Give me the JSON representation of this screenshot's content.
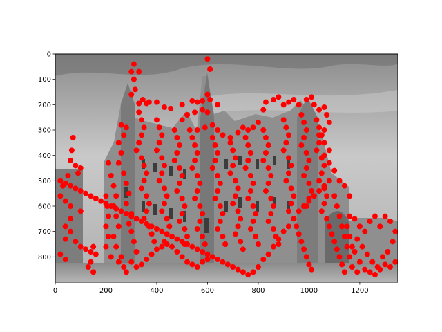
{
  "chart_data": {
    "type": "scatter",
    "title": "",
    "xlabel": "",
    "ylabel": "",
    "background": "grayscale photograph of a castle-like stone building (Episcopal Palace style) with towers, under a cloudy sky",
    "xlim": [
      0,
      1350
    ],
    "ylim": [
      900,
      0
    ],
    "y_inverted": true,
    "grid": false,
    "legend": "none",
    "marker_color": "#ff0000",
    "x_ticks": [
      0,
      200,
      400,
      600,
      800,
      1000,
      1200
    ],
    "y_ticks": [
      0,
      100,
      200,
      300,
      400,
      500,
      600,
      700,
      800
    ],
    "points": [
      [
        600,
        20
      ],
      [
        610,
        60
      ],
      [
        310,
        40
      ],
      [
        300,
        70
      ],
      [
        330,
        70
      ],
      [
        310,
        100
      ],
      [
        315,
        140
      ],
      [
        300,
        160
      ],
      [
        345,
        180
      ],
      [
        330,
        195
      ],
      [
        360,
        195
      ],
      [
        370,
        190
      ],
      [
        400,
        190
      ],
      [
        430,
        210
      ],
      [
        455,
        215
      ],
      [
        500,
        200
      ],
      [
        540,
        185
      ],
      [
        560,
        190
      ],
      [
        580,
        185
      ],
      [
        600,
        160
      ],
      [
        610,
        180
      ],
      [
        640,
        200
      ],
      [
        600,
        230
      ],
      [
        580,
        220
      ],
      [
        550,
        230
      ],
      [
        520,
        240
      ],
      [
        500,
        260
      ],
      [
        530,
        300
      ],
      [
        560,
        300
      ],
      [
        590,
        290
      ],
      [
        620,
        280
      ],
      [
        640,
        300
      ],
      [
        660,
        320
      ],
      [
        690,
        330
      ],
      [
        720,
        310
      ],
      [
        740,
        290
      ],
      [
        760,
        300
      ],
      [
        780,
        290
      ],
      [
        800,
        270
      ],
      [
        820,
        220
      ],
      [
        830,
        190
      ],
      [
        860,
        180
      ],
      [
        880,
        170
      ],
      [
        900,
        200
      ],
      [
        920,
        190
      ],
      [
        940,
        180
      ],
      [
        960,
        200
      ],
      [
        990,
        180
      ],
      [
        1010,
        170
      ],
      [
        1020,
        200
      ],
      [
        1040,
        220
      ],
      [
        1060,
        210
      ],
      [
        1070,
        240
      ],
      [
        1080,
        270
      ],
      [
        1060,
        300
      ],
      [
        1040,
        320
      ],
      [
        1060,
        350
      ],
      [
        1080,
        380
      ],
      [
        1060,
        400
      ],
      [
        1080,
        430
      ],
      [
        1100,
        460
      ],
      [
        1120,
        500
      ],
      [
        1140,
        520
      ],
      [
        1160,
        560
      ],
      [
        1080,
        500
      ],
      [
        1060,
        520
      ],
      [
        1040,
        540
      ],
      [
        1020,
        560
      ],
      [
        1000,
        580
      ],
      [
        980,
        600
      ],
      [
        960,
        620
      ],
      [
        940,
        650
      ],
      [
        920,
        680
      ],
      [
        900,
        700
      ],
      [
        880,
        730
      ],
      [
        860,
        760
      ],
      [
        840,
        790
      ],
      [
        820,
        810
      ],
      [
        800,
        840
      ],
      [
        780,
        860
      ],
      [
        760,
        870
      ],
      [
        740,
        860
      ],
      [
        720,
        850
      ],
      [
        700,
        840
      ],
      [
        680,
        830
      ],
      [
        660,
        820
      ],
      [
        640,
        810
      ],
      [
        620,
        800
      ],
      [
        600,
        790
      ],
      [
        580,
        780
      ],
      [
        560,
        770
      ],
      [
        540,
        760
      ],
      [
        520,
        750
      ],
      [
        500,
        740
      ],
      [
        480,
        730
      ],
      [
        460,
        720
      ],
      [
        440,
        710
      ],
      [
        420,
        700
      ],
      [
        400,
        690
      ],
      [
        380,
        680
      ],
      [
        360,
        670
      ],
      [
        340,
        660
      ],
      [
        320,
        650
      ],
      [
        300,
        640
      ],
      [
        280,
        630
      ],
      [
        260,
        620
      ],
      [
        240,
        610
      ],
      [
        220,
        600
      ],
      [
        200,
        590
      ],
      [
        180,
        580
      ],
      [
        160,
        570
      ],
      [
        140,
        560
      ],
      [
        120,
        550
      ],
      [
        100,
        540
      ],
      [
        80,
        530
      ],
      [
        60,
        520
      ],
      [
        40,
        510
      ],
      [
        20,
        500
      ],
      [
        70,
        330
      ],
      [
        65,
        380
      ],
      [
        60,
        420
      ],
      [
        80,
        440
      ],
      [
        100,
        450
      ],
      [
        90,
        470
      ],
      [
        50,
        480
      ],
      [
        30,
        520
      ],
      [
        20,
        560
      ],
      [
        40,
        580
      ],
      [
        60,
        600
      ],
      [
        100,
        620
      ],
      [
        60,
        650
      ],
      [
        40,
        680
      ],
      [
        60,
        700
      ],
      [
        40,
        730
      ],
      [
        80,
        740
      ],
      [
        100,
        760
      ],
      [
        120,
        770
      ],
      [
        140,
        780
      ],
      [
        150,
        760
      ],
      [
        160,
        790
      ],
      [
        140,
        820
      ],
      [
        130,
        840
      ],
      [
        150,
        860
      ],
      [
        40,
        810
      ],
      [
        20,
        790
      ],
      [
        210,
        430
      ],
      [
        220,
        480
      ],
      [
        230,
        520
      ],
      [
        240,
        560
      ],
      [
        230,
        600
      ],
      [
        240,
        640
      ],
      [
        250,
        680
      ],
      [
        230,
        720
      ],
      [
        240,
        760
      ],
      [
        260,
        800
      ],
      [
        270,
        840
      ],
      [
        280,
        860
      ],
      [
        250,
        820
      ],
      [
        220,
        800
      ],
      [
        200,
        760
      ],
      [
        210,
        720
      ],
      [
        200,
        680
      ],
      [
        210,
        640
      ],
      [
        205,
        600
      ],
      [
        200,
        560
      ],
      [
        260,
        280
      ],
      [
        280,
        290
      ],
      [
        270,
        320
      ],
      [
        250,
        350
      ],
      [
        260,
        390
      ],
      [
        250,
        430
      ],
      [
        270,
        470
      ],
      [
        280,
        510
      ],
      [
        290,
        550
      ],
      [
        280,
        590
      ],
      [
        300,
        630
      ],
      [
        290,
        670
      ],
      [
        300,
        700
      ],
      [
        310,
        740
      ],
      [
        320,
        780
      ],
      [
        300,
        820
      ],
      [
        320,
        840
      ],
      [
        340,
        830
      ],
      [
        360,
        810
      ],
      [
        380,
        790
      ],
      [
        400,
        770
      ],
      [
        420,
        760
      ],
      [
        440,
        750
      ],
      [
        460,
        760
      ],
      [
        480,
        780
      ],
      [
        500,
        800
      ],
      [
        520,
        820
      ],
      [
        540,
        830
      ],
      [
        560,
        840
      ],
      [
        580,
        820
      ],
      [
        600,
        810
      ],
      [
        330,
        230
      ],
      [
        340,
        260
      ],
      [
        350,
        290
      ],
      [
        340,
        320
      ],
      [
        330,
        350
      ],
      [
        320,
        380
      ],
      [
        340,
        410
      ],
      [
        350,
        440
      ],
      [
        360,
        470
      ],
      [
        350,
        500
      ],
      [
        340,
        530
      ],
      [
        360,
        560
      ],
      [
        370,
        590
      ],
      [
        360,
        620
      ],
      [
        350,
        650
      ],
      [
        370,
        680
      ],
      [
        380,
        710
      ],
      [
        390,
        740
      ],
      [
        400,
        260
      ],
      [
        410,
        290
      ],
      [
        420,
        320
      ],
      [
        410,
        350
      ],
      [
        400,
        380
      ],
      [
        420,
        410
      ],
      [
        430,
        440
      ],
      [
        420,
        470
      ],
      [
        410,
        500
      ],
      [
        430,
        530
      ],
      [
        440,
        560
      ],
      [
        430,
        590
      ],
      [
        420,
        620
      ],
      [
        440,
        650
      ],
      [
        450,
        680
      ],
      [
        440,
        710
      ],
      [
        430,
        740
      ],
      [
        470,
        300
      ],
      [
        480,
        330
      ],
      [
        490,
        360
      ],
      [
        480,
        390
      ],
      [
        470,
        420
      ],
      [
        490,
        450
      ],
      [
        500,
        480
      ],
      [
        490,
        510
      ],
      [
        480,
        540
      ],
      [
        500,
        570
      ],
      [
        510,
        600
      ],
      [
        500,
        630
      ],
      [
        490,
        660
      ],
      [
        510,
        690
      ],
      [
        520,
        720
      ],
      [
        510,
        750
      ],
      [
        540,
        330
      ],
      [
        550,
        360
      ],
      [
        560,
        390
      ],
      [
        550,
        420
      ],
      [
        540,
        450
      ],
      [
        560,
        480
      ],
      [
        570,
        510
      ],
      [
        560,
        540
      ],
      [
        550,
        570
      ],
      [
        570,
        600
      ],
      [
        580,
        630
      ],
      [
        570,
        660
      ],
      [
        560,
        690
      ],
      [
        580,
        720
      ],
      [
        590,
        750
      ],
      [
        620,
        330
      ],
      [
        630,
        360
      ],
      [
        640,
        390
      ],
      [
        630,
        420
      ],
      [
        620,
        450
      ],
      [
        640,
        480
      ],
      [
        650,
        510
      ],
      [
        640,
        540
      ],
      [
        630,
        570
      ],
      [
        650,
        600
      ],
      [
        660,
        630
      ],
      [
        650,
        660
      ],
      [
        640,
        690
      ],
      [
        660,
        720
      ],
      [
        670,
        750
      ],
      [
        690,
        350
      ],
      [
        700,
        380
      ],
      [
        710,
        410
      ],
      [
        700,
        440
      ],
      [
        690,
        470
      ],
      [
        710,
        500
      ],
      [
        720,
        530
      ],
      [
        710,
        560
      ],
      [
        700,
        590
      ],
      [
        720,
        620
      ],
      [
        730,
        650
      ],
      [
        720,
        680
      ],
      [
        710,
        710
      ],
      [
        730,
        740
      ],
      [
        740,
        770
      ],
      [
        750,
        330
      ],
      [
        760,
        360
      ],
      [
        770,
        390
      ],
      [
        760,
        420
      ],
      [
        750,
        450
      ],
      [
        770,
        480
      ],
      [
        780,
        510
      ],
      [
        770,
        540
      ],
      [
        760,
        570
      ],
      [
        780,
        600
      ],
      [
        790,
        630
      ],
      [
        780,
        660
      ],
      [
        770,
        690
      ],
      [
        790,
        720
      ],
      [
        800,
        750
      ],
      [
        820,
        300
      ],
      [
        830,
        330
      ],
      [
        840,
        360
      ],
      [
        830,
        390
      ],
      [
        820,
        420
      ],
      [
        840,
        450
      ],
      [
        850,
        480
      ],
      [
        840,
        510
      ],
      [
        830,
        540
      ],
      [
        850,
        570
      ],
      [
        860,
        600
      ],
      [
        850,
        630
      ],
      [
        840,
        660
      ],
      [
        860,
        690
      ],
      [
        870,
        720
      ],
      [
        880,
        750
      ],
      [
        900,
        260
      ],
      [
        910,
        290
      ],
      [
        920,
        320
      ],
      [
        910,
        350
      ],
      [
        900,
        380
      ],
      [
        920,
        410
      ],
      [
        930,
        440
      ],
      [
        920,
        470
      ],
      [
        910,
        500
      ],
      [
        930,
        530
      ],
      [
        940,
        560
      ],
      [
        930,
        590
      ],
      [
        920,
        620
      ],
      [
        940,
        650
      ],
      [
        950,
        680
      ],
      [
        960,
        710
      ],
      [
        970,
        740
      ],
      [
        980,
        770
      ],
      [
        990,
        800
      ],
      [
        1000,
        830
      ],
      [
        1010,
        850
      ],
      [
        970,
        240
      ],
      [
        980,
        270
      ],
      [
        990,
        300
      ],
      [
        980,
        330
      ],
      [
        970,
        360
      ],
      [
        990,
        390
      ],
      [
        1000,
        420
      ],
      [
        990,
        450
      ],
      [
        980,
        480
      ],
      [
        1000,
        510
      ],
      [
        1010,
        540
      ],
      [
        1000,
        570
      ],
      [
        990,
        600
      ],
      [
        1030,
        260
      ],
      [
        1040,
        290
      ],
      [
        1050,
        320
      ],
      [
        1040,
        350
      ],
      [
        1030,
        380
      ],
      [
        1050,
        410
      ],
      [
        1060,
        440
      ],
      [
        1050,
        470
      ],
      [
        1040,
        500
      ],
      [
        1060,
        530
      ],
      [
        1070,
        560
      ],
      [
        1060,
        590
      ],
      [
        1050,
        620
      ],
      [
        1070,
        650
      ],
      [
        1080,
        680
      ],
      [
        1090,
        710
      ],
      [
        1100,
        740
      ],
      [
        1110,
        770
      ],
      [
        1120,
        800
      ],
      [
        1130,
        830
      ],
      [
        1140,
        860
      ],
      [
        1100,
        560
      ],
      [
        1110,
        600
      ],
      [
        1120,
        640
      ],
      [
        1130,
        680
      ],
      [
        1140,
        720
      ],
      [
        1150,
        760
      ],
      [
        1160,
        800
      ],
      [
        1170,
        840
      ],
      [
        1180,
        650
      ],
      [
        1200,
        680
      ],
      [
        1220,
        700
      ],
      [
        1240,
        660
      ],
      [
        1260,
        640
      ],
      [
        1280,
        680
      ],
      [
        1300,
        640
      ],
      [
        1320,
        660
      ],
      [
        1340,
        700
      ],
      [
        1330,
        740
      ],
      [
        1310,
        780
      ],
      [
        1290,
        800
      ],
      [
        1270,
        840
      ],
      [
        1250,
        820
      ],
      [
        1230,
        790
      ],
      [
        1210,
        760
      ],
      [
        1190,
        730
      ],
      [
        1180,
        780
      ],
      [
        1200,
        820
      ],
      [
        1220,
        850
      ],
      [
        1240,
        860
      ],
      [
        1260,
        870
      ],
      [
        1280,
        850
      ],
      [
        1300,
        830
      ],
      [
        1320,
        840
      ],
      [
        1340,
        820
      ],
      [
        1190,
        860
      ],
      [
        1170,
        760
      ],
      [
        1160,
        720
      ],
      [
        1150,
        680
      ],
      [
        1160,
        640
      ]
    ]
  }
}
